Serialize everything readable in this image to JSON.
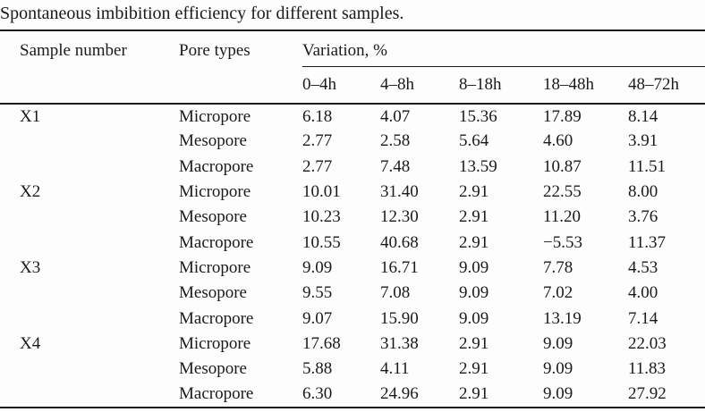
{
  "title": "Spontaneous imbibition efficiency for different samples.",
  "colors": {
    "text": "#1a1a1a",
    "rule": "#1a1a1a",
    "background": "#fdfdfd"
  },
  "table": {
    "headers": {
      "sample": "Sample number",
      "pore": "Pore types",
      "variation_group": "Variation, %",
      "intervals": [
        "0–4h",
        "4–8h",
        "8–18h",
        "18–48h",
        "48–72h"
      ]
    },
    "rows": [
      {
        "sample": "X1",
        "pore": "Micropore",
        "values": [
          "6.18",
          "4.07",
          "15.36",
          "17.89",
          "8.14"
        ]
      },
      {
        "sample": "",
        "pore": "Mesopore",
        "values": [
          "2.77",
          "2.58",
          "5.64",
          "4.60",
          "3.91"
        ]
      },
      {
        "sample": "",
        "pore": "Macropore",
        "values": [
          "2.77",
          "7.48",
          "13.59",
          "10.87",
          "11.51"
        ]
      },
      {
        "sample": "X2",
        "pore": "Micropore",
        "values": [
          "10.01",
          "31.40",
          "2.91",
          "22.55",
          "8.00"
        ]
      },
      {
        "sample": "",
        "pore": "Mesopore",
        "values": [
          "10.23",
          "12.30",
          "2.91",
          "11.20",
          "3.76"
        ]
      },
      {
        "sample": "",
        "pore": "Macropore",
        "values": [
          "10.55",
          "40.68",
          "2.91",
          "−5.53",
          "11.37"
        ]
      },
      {
        "sample": "X3",
        "pore": "Micropore",
        "values": [
          "9.09",
          "16.71",
          "9.09",
          "7.78",
          "4.53"
        ]
      },
      {
        "sample": "",
        "pore": "Mesopore",
        "values": [
          "9.55",
          "7.08",
          "9.09",
          "7.02",
          "4.00"
        ]
      },
      {
        "sample": "",
        "pore": "Macropore",
        "values": [
          "9.07",
          "15.90",
          "9.09",
          "13.19",
          "7.14"
        ]
      },
      {
        "sample": "X4",
        "pore": "Micropore",
        "values": [
          "17.68",
          "31.38",
          "2.91",
          "9.09",
          "22.03"
        ]
      },
      {
        "sample": "",
        "pore": "Mesopore",
        "values": [
          "5.88",
          "4.11",
          "2.91",
          "9.09",
          "11.83"
        ]
      },
      {
        "sample": "",
        "pore": "Macropore",
        "values": [
          "6.30",
          "24.96",
          "2.91",
          "9.09",
          "27.92"
        ]
      }
    ]
  }
}
